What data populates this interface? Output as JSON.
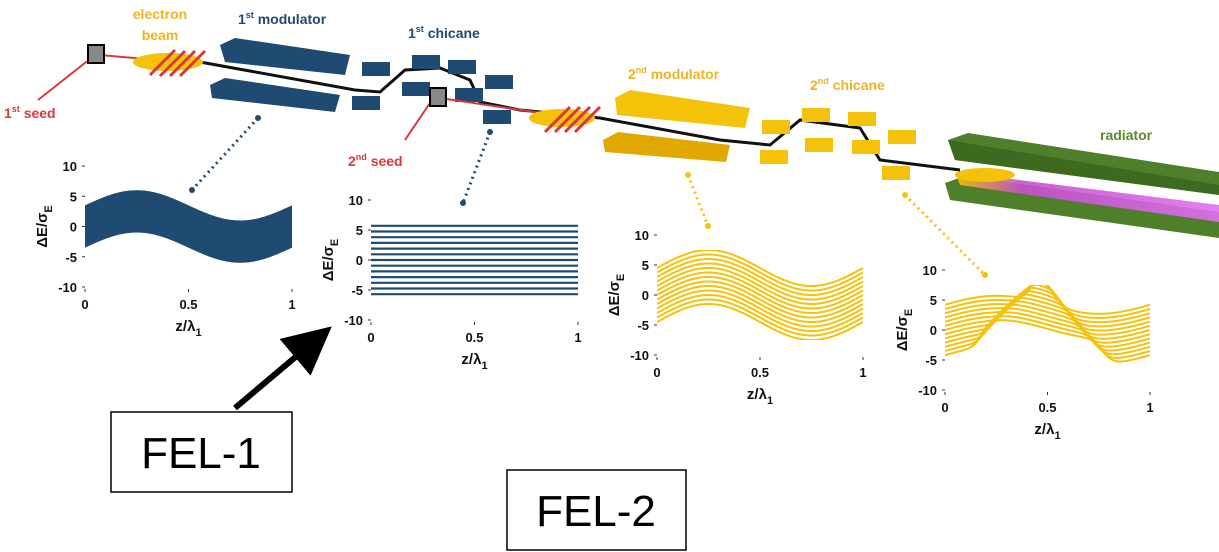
{
  "beamline": {
    "electron_beam": [
      "electron",
      "beam"
    ],
    "modulator_1": {
      "num": "1",
      "sup": "st",
      "word": "modulator"
    },
    "chicane_1": {
      "num": "1",
      "sup": "st",
      "word": "chicane"
    },
    "seed_1": {
      "num": "1",
      "sup": "st",
      "word": "seed"
    },
    "seed_2": {
      "num": "2",
      "sup": "nd",
      "word": "seed"
    },
    "modulator_2": {
      "num": "2",
      "sup": "nd",
      "word": "modulator"
    },
    "chicane_2": {
      "num": "2",
      "sup": "nd",
      "word": "chicane"
    },
    "radiator": "radiator"
  },
  "plots": [
    {
      "ylabel": {
        "main": "ΔE/σ",
        "sub": "E"
      },
      "xlabel": {
        "main": "z/λ",
        "sub": "1"
      },
      "xlim": [
        0,
        1
      ],
      "ylim": [
        -10,
        10
      ],
      "xticks": [
        0,
        0.5,
        1
      ],
      "yticks": [
        10,
        5,
        0,
        -5,
        -10
      ],
      "color": "#1f4a72"
    },
    {
      "ylabel": {
        "main": "ΔE/σ",
        "sub": "E"
      },
      "xlabel": {
        "main": "z/λ",
        "sub": "1"
      },
      "xlim": [
        0,
        1
      ],
      "ylim": [
        -10,
        10
      ],
      "xticks": [
        0,
        0.5,
        1
      ],
      "yticks": [
        10,
        5,
        0,
        -5,
        -10
      ],
      "color": "#1f4a72"
    },
    {
      "ylabel": {
        "main": "ΔE/σ",
        "sub": "E"
      },
      "xlabel": {
        "main": "z/λ",
        "sub": "1"
      },
      "xlim": [
        0,
        1
      ],
      "ylim": [
        -10,
        10
      ],
      "xticks": [
        0,
        0.5,
        1
      ],
      "yticks": [
        10,
        5,
        0,
        -5,
        -10
      ],
      "color": "#f5c20a"
    },
    {
      "ylabel": {
        "main": "ΔE/σ",
        "sub": "E"
      },
      "xlabel": {
        "main": "z/λ",
        "sub": "1"
      },
      "xlim": [
        0,
        1
      ],
      "ylim": [
        -10,
        10
      ],
      "xticks": [
        0,
        0.5,
        1
      ],
      "yticks": [
        10,
        5,
        0,
        -5,
        -10
      ],
      "color": "#f5c20a"
    }
  ],
  "boxes": [
    "FEL-1",
    "FEL-2"
  ]
}
